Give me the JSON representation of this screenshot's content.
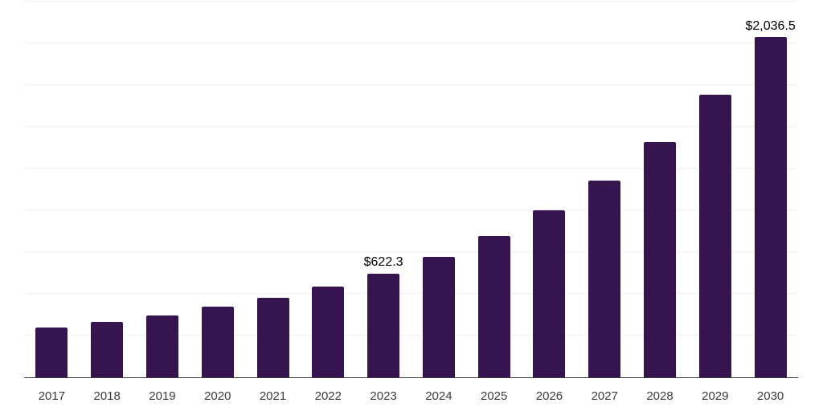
{
  "chart_data": {
    "type": "bar",
    "title": "",
    "xlabel": "",
    "ylabel": "",
    "categories": [
      "2017",
      "2018",
      "2019",
      "2020",
      "2021",
      "2022",
      "2023",
      "2024",
      "2025",
      "2026",
      "2027",
      "2028",
      "2029",
      "2030"
    ],
    "values": [
      297,
      332,
      372,
      425,
      478,
      545,
      622.3,
      723,
      846,
      998,
      1180,
      1407,
      1691,
      2036.5
    ],
    "annotations": [
      {
        "category": "2023",
        "text": "$622.3"
      },
      {
        "category": "2030",
        "text": "$2,036.5"
      }
    ],
    "ylim": [
      0,
      2250
    ],
    "gridline_step": 250,
    "grid": true,
    "legend": false,
    "colors": {
      "bar": "#361450",
      "axis_line": "#3c3c3c",
      "gridline": "#f0f0f0",
      "tick_label": "#3a3a3a",
      "value_label": "#000000",
      "background": "#ffffff"
    }
  }
}
